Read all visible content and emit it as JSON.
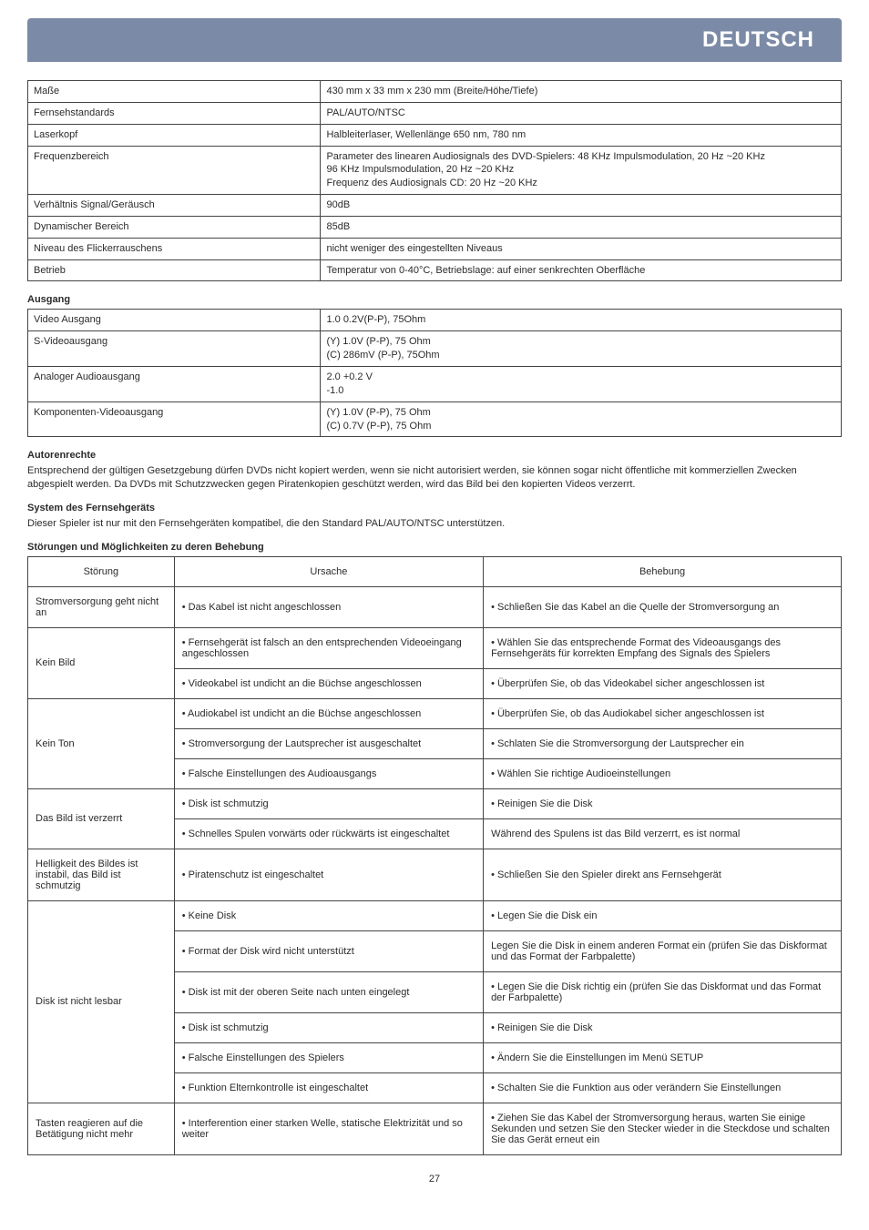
{
  "headerTitle": "DEUTSCH",
  "specs": [
    {
      "label": "Maße",
      "value": "430 mm x 33 mm x 230 mm (Breite/Höhe/Tiefe)"
    },
    {
      "label": "Fernsehstandards",
      "value": "PAL/AUTO/NTSC"
    },
    {
      "label": "Laserkopf",
      "value": "Halbleiterlaser, Wellenlänge 650 nm, 780 nm"
    },
    {
      "label": "Frequenzbereich",
      "value": "Parameter des linearen Audiosignals des DVD-Spielers: 48 KHz Impulsmodulation, 20 Hz ~20 KHz\n96 KHz Impulsmodulation, 20 Hz ~20 KHz\nFrequenz des Audiosignals CD: 20 Hz ~20 KHz"
    },
    {
      "label": "Verhältnis Signal/Geräusch",
      "value": "90dB"
    },
    {
      "label": "Dynamischer Bereich",
      "value": "85dB"
    },
    {
      "label": "Niveau des Flickerrauschens",
      "value": "nicht weniger des eingestellten Niveaus"
    },
    {
      "label": "Betrieb",
      "value": "Temperatur von 0-40°C, Betriebslage: auf einer senkrechten Oberfläche"
    }
  ],
  "ausgangTitle": "Ausgang",
  "ausgang": [
    {
      "label": "Video Ausgang",
      "value": "1.0 0.2V(P-P), 75Ohm"
    },
    {
      "label": "S-Videoausgang",
      "value": "(Y) 1.0V (P-P), 75 Ohm\n(C) 286mV (P-P), 75Ohm"
    },
    {
      "label": "Analoger Audioausgang",
      "value": "2.0 +0.2 V\n-1.0"
    },
    {
      "label": "Komponenten-Videoausgang",
      "value": "(Y) 1.0V (P-P), 75 Ohm\n(C) 0.7V (P-P), 75 Ohm"
    }
  ],
  "autorenTitle": "Autorenrechte",
  "autorenText": "Entsprechend der gültigen Gesetzgebung dürfen DVDs nicht kopiert werden, wenn sie nicht autorisiert werden, sie können sogar nicht öffentliche mit kommerziellen Zwecken abgespielt werden. Da DVDs mit Schutzzwecken gegen Piratenkopien geschützt werden, wird das Bild bei den kopierten Videos verzerrt.",
  "systemTitle": "System des Fernsehgeräts",
  "systemText": "Dieser Spieler ist nur mit den Fernsehgeräten kompatibel, die den Standard PAL/AUTO/NTSC unterstützen.",
  "troubleTitle": "Störungen und Möglichkeiten zu deren Behebung",
  "troubleHeaders": {
    "c1": "Störung",
    "c2": "Ursache",
    "c3": "Behebung"
  },
  "trouble": [
    {
      "problem": "Stromversorgung geht nicht an",
      "rows": [
        {
          "cause": "Das Kabel ist nicht angeschlossen",
          "fix": "Schließen Sie das Kabel an die Quelle der Stromversorgung an"
        }
      ]
    },
    {
      "problem": "Kein Bild",
      "rows": [
        {
          "cause": "Fernsehgerät ist falsch an den entsprechenden Videoeingang angeschlossen",
          "fix": "Wählen Sie das entsprechende Format des Videoausgangs des Fernsehgeräts für korrekten Empfang des Signals des Spielers"
        },
        {
          "cause": "Videokabel ist undicht an die Büchse angeschlossen",
          "fix": "Überprüfen Sie, ob das Videokabel sicher angeschlossen ist"
        }
      ]
    },
    {
      "problem": "Kein Ton",
      "rows": [
        {
          "cause": "Audiokabel ist undicht an die Büchse angeschlossen",
          "fix": "Überprüfen Sie, ob das Audiokabel sicher angeschlossen ist"
        },
        {
          "cause": "Stromversorgung der Lautsprecher ist ausgeschaltet",
          "fix": "Schlaten Sie die Stromversorgung der Lautsprecher ein"
        },
        {
          "cause": "Falsche Einstellungen des Audioausgangs",
          "fix": "Wählen Sie richtige Audioeinstellungen"
        }
      ]
    },
    {
      "problem": "Das Bild ist verzerrt",
      "rows": [
        {
          "cause": "Disk ist schmutzig",
          "fix": "Reinigen Sie die Disk"
        },
        {
          "cause": "Schnelles Spulen vorwärts oder rückwärts ist eingeschaltet",
          "fix": "Während des Spulens ist das Bild verzerrt, es ist normal",
          "nofixbullet": true
        }
      ]
    },
    {
      "problem": "Helligkeit des Bildes ist instabil, das Bild ist schmutzig",
      "rows": [
        {
          "cause": "Piratenschutz ist eingeschaltet",
          "fix": "Schließen Sie den Spieler direkt ans Fernsehgerät"
        }
      ]
    },
    {
      "problem": "Disk ist nicht lesbar",
      "rows": [
        {
          "cause": "Keine Disk",
          "fix": "Legen Sie die Disk ein"
        },
        {
          "cause": "Format der Disk wird nicht unterstützt",
          "fix": "Legen Sie die Disk in einem anderen Format ein (prüfen Sie das Diskformat und das Format der Farbpalette)",
          "nofixbullet": true
        },
        {
          "cause": "Disk ist mit der oberen Seite nach unten eingelegt",
          "fix": "Legen Sie die Disk richtig ein (prüfen Sie das Diskformat und das Format der Farbpalette)"
        },
        {
          "cause": "Disk ist schmutzig",
          "fix": "Reinigen Sie die Disk"
        },
        {
          "cause": "Falsche Einstellungen des Spielers",
          "fix": "Ändern Sie die Einstellungen im Menü SETUP"
        },
        {
          "cause": "Funktion Elternkontrolle ist eingeschaltet",
          "fix": "Schalten Sie die Funktion aus oder verändern Sie Einstellungen"
        }
      ]
    },
    {
      "problem": "Tasten reagieren auf die Betätigung nicht mehr",
      "rows": [
        {
          "cause": "Interferention einer starken Welle, statische Elektrizität und so weiter",
          "fix": "Ziehen Sie das Kabel der Stromversorgung heraus, warten Sie einige Sekunden und setzen Sie den Stecker wieder in die Steckdose und schalten Sie das Gerät erneut ein"
        }
      ]
    }
  ],
  "pageNumber": "27",
  "colors": {
    "headerBg": "#7b8aa6",
    "headerText": "#ffffff",
    "border": "#444444",
    "text": "#2b2b2b"
  }
}
